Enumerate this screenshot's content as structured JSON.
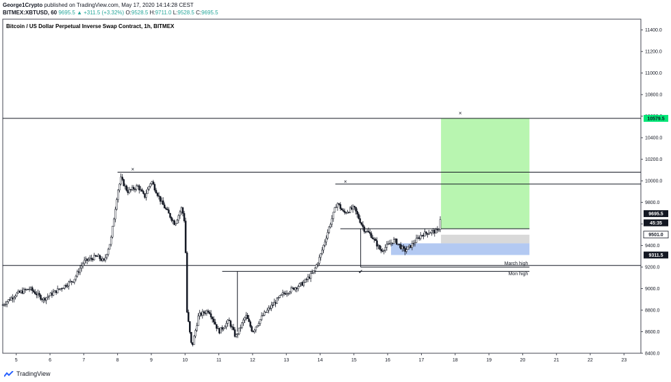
{
  "header": {
    "author": "George1Crypto",
    "published": "published on TradingView.com, May 17, 2020 14:14:28 CEST",
    "symbol": "BITMEX:XBTUSD, 60",
    "last": "9695.5",
    "change": "▲ +311.5 (+3.32%)",
    "o_label": "O:",
    "o": "9528.5",
    "h_label": "H:",
    "h": "9711.0",
    "l_label": "L:",
    "l": "9528.5",
    "c_label": "C:",
    "c": "9695.5"
  },
  "brand": {
    "name": "TradingView",
    "icon": "tradingview-logo-icon"
  },
  "colors": {
    "up": "#26a69a",
    "target_zone": "#b8f5b0",
    "stop_zone_gray": "#d9d9d9",
    "stop_zone_blue": "#b3c9f2",
    "price_green": "#00e676"
  },
  "chart_data": {
    "type": "candlestick",
    "title": "Bitcoin / US Dollar Perpetual Inverse Swap Contract, 1h, BITMEX",
    "x_ticks": [
      "5",
      "6",
      "7",
      "8",
      "9",
      "10",
      "11",
      "12",
      "13",
      "14",
      "15",
      "16",
      "17",
      "18",
      "19",
      "20",
      "21",
      "22",
      "23"
    ],
    "y_ticks": [
      "8400.0",
      "8600.0",
      "8800.0",
      "9000.0",
      "9200.0",
      "9400.0",
      "9600.0",
      "9800.0",
      "10000.0",
      "10200.0",
      "10400.0",
      "10600.0",
      "10800.0",
      "11000.0",
      "11200.0",
      "11400.0"
    ],
    "ylim": [
      8400,
      11500
    ],
    "xlim": [
      4.6,
      23.5
    ],
    "anchors": [
      [
        4.6,
        8850
      ],
      [
        5.0,
        8950
      ],
      [
        5.4,
        9000
      ],
      [
        5.8,
        8900
      ],
      [
        6.3,
        9000
      ],
      [
        6.7,
        9080
      ],
      [
        7.0,
        9250
      ],
      [
        7.4,
        9300
      ],
      [
        7.6,
        9250
      ],
      [
        7.8,
        9450
      ],
      [
        8.0,
        9900
      ],
      [
        8.1,
        10020
      ],
      [
        8.3,
        9900
      ],
      [
        8.6,
        9950
      ],
      [
        8.8,
        9850
      ],
      [
        9.0,
        10000
      ],
      [
        9.3,
        9800
      ],
      [
        9.5,
        9700
      ],
      [
        9.7,
        9600
      ],
      [
        9.9,
        9750
      ],
      [
        10.0,
        9600
      ],
      [
        10.05,
        8800
      ],
      [
        10.2,
        8450
      ],
      [
        10.4,
        8750
      ],
      [
        10.7,
        8800
      ],
      [
        11.0,
        8600
      ],
      [
        11.3,
        8700
      ],
      [
        11.5,
        8550
      ],
      [
        11.8,
        8750
      ],
      [
        12.0,
        8600
      ],
      [
        12.3,
        8750
      ],
      [
        12.6,
        8850
      ],
      [
        12.9,
        8950
      ],
      [
        13.2,
        9000
      ],
      [
        13.5,
        9050
      ],
      [
        13.8,
        9150
      ],
      [
        14.0,
        9300
      ],
      [
        14.3,
        9600
      ],
      [
        14.5,
        9800
      ],
      [
        14.7,
        9700
      ],
      [
        15.0,
        9750
      ],
      [
        15.3,
        9550
      ],
      [
        15.5,
        9500
      ],
      [
        15.8,
        9350
      ],
      [
        16.0,
        9400
      ],
      [
        16.2,
        9450
      ],
      [
        16.5,
        9350
      ],
      [
        16.7,
        9400
      ],
      [
        17.0,
        9500
      ],
      [
        17.3,
        9530
      ],
      [
        17.5,
        9528
      ],
      [
        17.58,
        9695
      ]
    ],
    "current_price": 9695.5,
    "price_labels": [
      {
        "value": "10579.5",
        "price": 10579.5,
        "style": "green"
      },
      {
        "value": "9695.5",
        "price": 9695.5,
        "style": "black"
      },
      {
        "value": "45:35",
        "price": 9610,
        "style": "black"
      },
      {
        "value": "9501.0",
        "price": 9501,
        "style": "light"
      },
      {
        "value": "9311.5",
        "price": 9311.5,
        "style": "black"
      }
    ],
    "horizontal_levels": [
      {
        "price": 10579.5,
        "x_from": 4.6,
        "x_to": 23.5
      },
      {
        "price": 10080,
        "x_from": 8.0,
        "x_to": 23.5
      },
      {
        "price": 9970,
        "x_from": 14.45,
        "x_to": 23.5
      },
      {
        "price": 9215,
        "x_from": 4.6,
        "x_to": 23.5
      },
      {
        "price": 9200,
        "x_from": 15.2,
        "x_to": 20.2
      },
      {
        "price": 9160,
        "x_from": 11.1,
        "x_to": 20.2
      },
      {
        "price": 9555,
        "x_from": 14.6,
        "x_to": 20.2
      }
    ],
    "annotations": [
      {
        "text": "March high",
        "price": 9238,
        "x": 20.2
      },
      {
        "text": "Mon high",
        "price": 9143,
        "x": 20.2
      },
      {
        "text": "×",
        "price": 10110,
        "x": 8.45
      },
      {
        "text": "×",
        "price": 9995,
        "x": 14.75
      },
      {
        "text": "×",
        "price": 10630,
        "x": 18.15
      },
      {
        "text": "✔",
        "price": 9160,
        "x": 15.2
      }
    ],
    "zones": [
      {
        "name": "target",
        "x_from": 17.58,
        "x_to": 20.2,
        "p_from": 9555,
        "p_to": 10579.5
      },
      {
        "name": "stop-gray",
        "x_from": 17.58,
        "x_to": 20.2,
        "p_from": 9420,
        "p_to": 9500
      },
      {
        "name": "stop-blue",
        "x_from": 16.1,
        "x_to": 20.2,
        "p_from": 9311.5,
        "p_to": 9420
      }
    ],
    "grid": false
  }
}
